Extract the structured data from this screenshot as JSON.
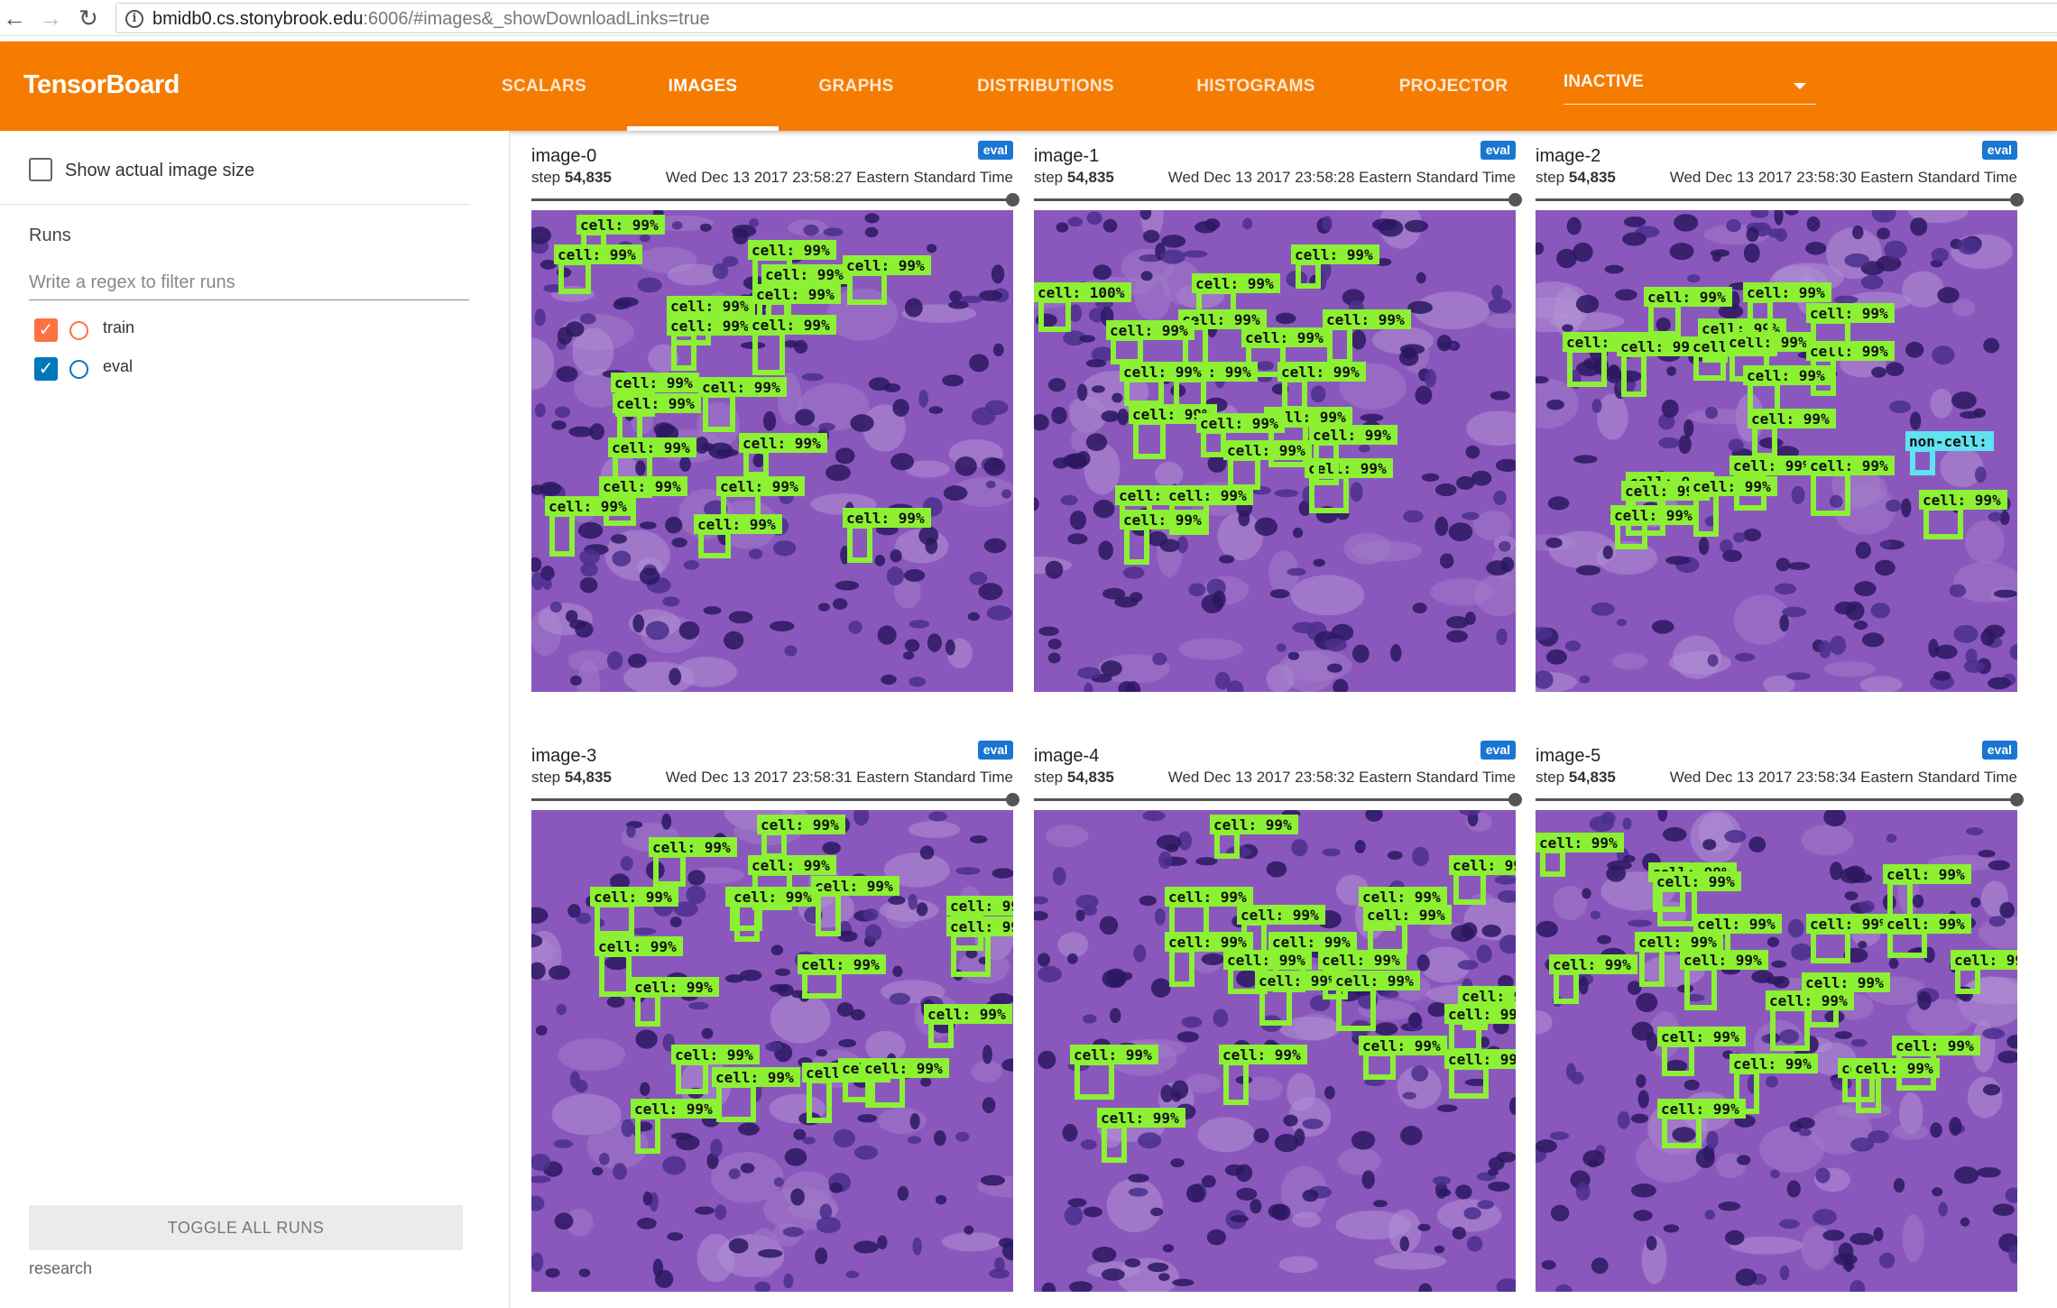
{
  "browser": {
    "url_host": "bmidb0.cs.stonybrook.edu",
    "url_rest": ":6006/#images&_showDownloadLinks=true",
    "nav": {
      "back": "back-arrow-icon",
      "forward": "forward-arrow-icon",
      "reload": "reload-icon"
    }
  },
  "app": {
    "title": "TensorBoard",
    "accent": "#f57c00"
  },
  "tabs": [
    {
      "label": "SCALARS"
    },
    {
      "label": "IMAGES",
      "active": true
    },
    {
      "label": "GRAPHS"
    },
    {
      "label": "DISTRIBUTIONS"
    },
    {
      "label": "HISTOGRAMS"
    },
    {
      "label": "PROJECTOR"
    }
  ],
  "inactive_dropdown": {
    "label": "INACTIVE"
  },
  "sidebar": {
    "show_actual_size": {
      "label": "Show actual image size",
      "checked": false
    },
    "runs_title": "Runs",
    "filter_placeholder": "Write a regex to filter runs",
    "runs": [
      {
        "name": "train",
        "checked": true,
        "color": "#ff7043"
      },
      {
        "name": "eval",
        "checked": true,
        "color": "#0077bb"
      }
    ],
    "toggle_all_label": "TOGGLE ALL RUNS",
    "footer": "research"
  },
  "cards": [
    {
      "title": "image-0",
      "run": "eval",
      "step_label": "step",
      "step": "54,835",
      "time": "Wed Dec 13 2017 23:58:27 Eastern Standard Time"
    },
    {
      "title": "image-1",
      "run": "eval",
      "step_label": "step",
      "step": "54,835",
      "time": "Wed Dec 13 2017 23:58:28 Eastern Standard Time"
    },
    {
      "title": "image-2",
      "run": "eval",
      "step_label": "step",
      "step": "54,835",
      "time": "Wed Dec 13 2017 23:58:30 Eastern Standard Time"
    },
    {
      "title": "image-3",
      "run": "eval",
      "step_label": "step",
      "step": "54,835",
      "time": "Wed Dec 13 2017 23:58:31 Eastern Standard Time"
    },
    {
      "title": "image-4",
      "run": "eval",
      "step_label": "step",
      "step": "54,835",
      "time": "Wed Dec 13 2017 23:58:32 Eastern Standard Time"
    },
    {
      "title": "image-5",
      "run": "eval",
      "step_label": "step",
      "step": "54,835",
      "time": "Wed Dec 13 2017 23:58:34 Eastern Standard Time"
    }
  ],
  "detection_label": "cell: 99%",
  "detection_label_alt": "cell: 100%",
  "detection_label_other": "non-cell:",
  "colors": {
    "box": "#8cf033",
    "box_alt": "#5fe3f0",
    "tissue": "#8a58bd",
    "nucleus": "#2a1860"
  }
}
